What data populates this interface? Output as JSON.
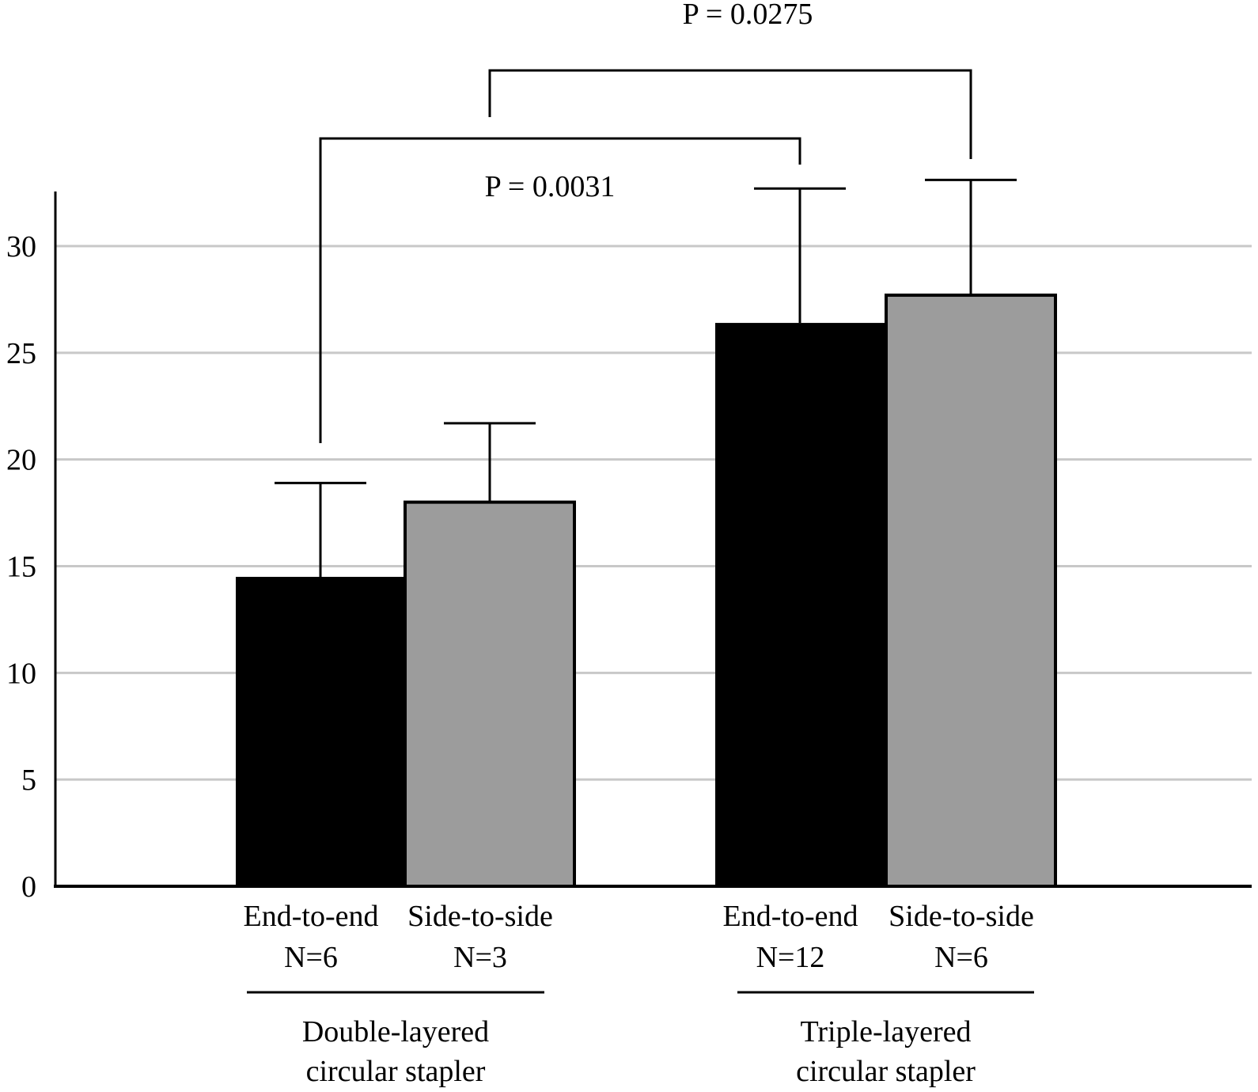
{
  "chart_data": {
    "type": "bar",
    "title": "",
    "xlabel": "",
    "ylabel": "",
    "ylim": [
      0,
      30
    ],
    "yticks": [
      0,
      5,
      10,
      15,
      20,
      25,
      30
    ],
    "grid": true,
    "colors": {
      "end_to_end": "#000000",
      "side_to_side": "#9c9c9c",
      "grid": "#c8c8c8",
      "axis": "#000000"
    },
    "bars": [
      {
        "category_line1": "End-to-end",
        "category_line2": "N=6",
        "group": "double",
        "value": 14.5,
        "error": 4.4,
        "color": "#000000"
      },
      {
        "category_line1": "Side-to-side",
        "category_line2": "N=3",
        "group": "double",
        "value": 18.0,
        "error": 3.7,
        "color": "#9c9c9c"
      },
      {
        "category_line1": "End-to-end",
        "category_line2": "N=12",
        "group": "triple",
        "value": 26.4,
        "error": 6.3,
        "color": "#000000"
      },
      {
        "category_line1": "Side-to-side",
        "category_line2": "N=6",
        "group": "triple",
        "value": 27.7,
        "error": 5.4,
        "color": "#9c9c9c"
      }
    ],
    "groups": [
      {
        "id": "double",
        "label_line1": "Double-layered",
        "label_line2": "circular stapler"
      },
      {
        "id": "triple",
        "label_line1": "Triple-layered",
        "label_line2": "circular stapler"
      }
    ],
    "annotations": [
      {
        "text": "P = 0.0031",
        "from_bar": 0,
        "to_bar": 2
      },
      {
        "text": "P = 0.0275",
        "from_bar": 1,
        "to_bar": 3
      }
    ]
  }
}
